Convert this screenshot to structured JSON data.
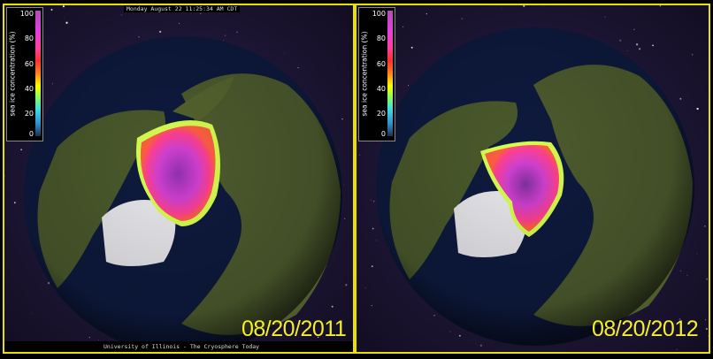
{
  "timestamp": "Monday August 22 11:25:34 AM CDT",
  "credit": "University of Illinois - The Cryosphere Today",
  "colorbar": {
    "title": "sea ice concentration (%)",
    "ticks": [
      "100",
      "80",
      "60",
      "40",
      "20",
      "0"
    ]
  },
  "panels": [
    {
      "date": "08/20/2011"
    },
    {
      "date": "08/20/2012"
    }
  ],
  "colors": {
    "border": "#e8e000",
    "date_text": "#f4ee30",
    "ice_high": "#a030c0",
    "ice_mid": "#ff40a0",
    "ice_edge": "#d0ff40",
    "ocean": "#0d1a40",
    "land": "#4a5a2a"
  }
}
